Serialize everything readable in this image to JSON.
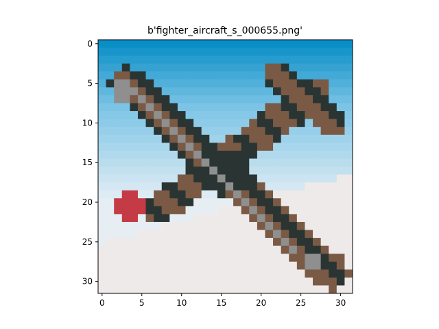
{
  "chart_data": {
    "type": "heatmap",
    "title": "b'fighter_aircraft_s_000655.png'",
    "xlabel": "",
    "ylabel": "",
    "xlim": [
      -0.5,
      31.5
    ],
    "ylim": [
      31.5,
      -0.5
    ],
    "x_ticks": [
      0,
      5,
      10,
      15,
      20,
      25,
      30
    ],
    "y_ticks": [
      0,
      5,
      10,
      15,
      20,
      25,
      30
    ],
    "x_tick_labels": [
      "0",
      "5",
      "10",
      "15",
      "20",
      "25",
      "30"
    ],
    "y_tick_labels": [
      "0",
      "5",
      "10",
      "15",
      "20",
      "25",
      "30"
    ],
    "grid": false,
    "image_size": [
      32,
      32
    ],
    "image_description_colors": {
      "sky_top": "#0a8ec6",
      "sky_mid": "#7cc4e6",
      "sky_low": "#e6eef4",
      "ground": "#efeaea",
      "plane_brown": "#7a5a45",
      "plane_dark": "#2a3533",
      "plane_grey": "#8f8f8f",
      "nose_red": "#c43a45"
    }
  }
}
